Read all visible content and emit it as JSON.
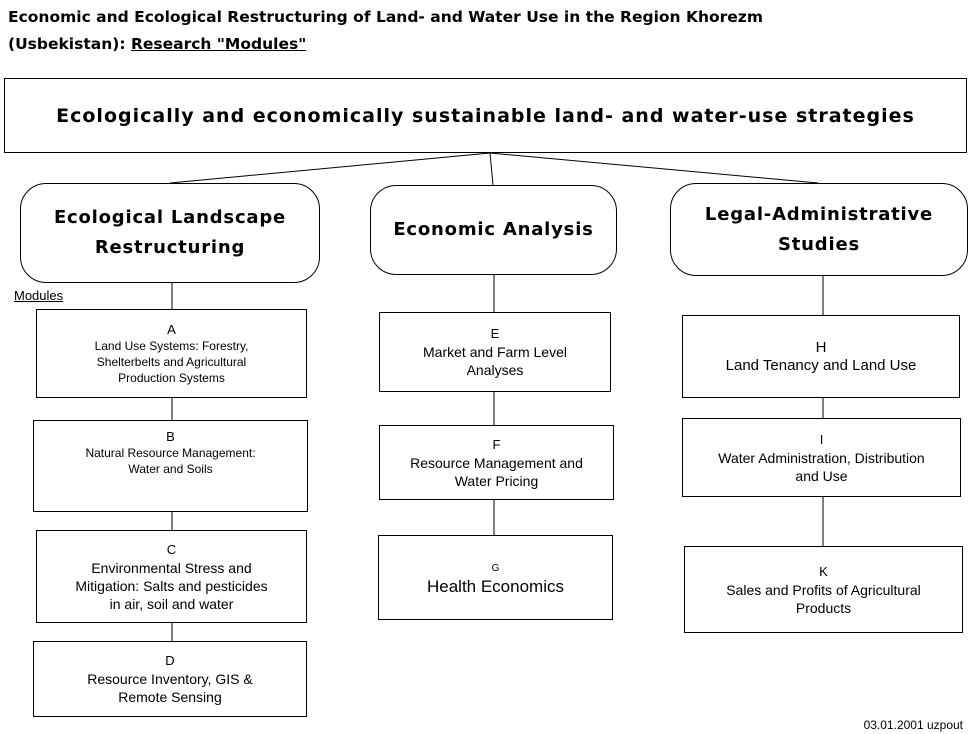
{
  "title": {
    "line1": "Economic and Ecological Restructuring of Land- and Water Use in the Region Khorezm",
    "line2_prefix": "(Usbekistan):",
    "line2_link": "Research \"Modules\""
  },
  "top": "Ecologically and economically sustainable land- and water-use strategies",
  "modules_label": "Modules",
  "columns": [
    {
      "heading": [
        "Ecological Landscape",
        "Restructuring"
      ],
      "modules": [
        {
          "letter": "A",
          "lines": [
            "Land Use Systems: Forestry,",
            "Shelterbelts and Agricultural",
            "Production Systems"
          ]
        },
        {
          "letter": "B",
          "lines": [
            "Natural Resource Management:",
            "Water and Soils"
          ]
        },
        {
          "letter": "C",
          "lines": [
            "Environmental Stress and",
            "Mitigation: Salts and pesticides",
            "in air, soil and water"
          ]
        },
        {
          "letter": "D",
          "lines": [
            "Resource Inventory, GIS &",
            "Remote Sensing"
          ]
        }
      ]
    },
    {
      "heading": [
        "Economic Analysis"
      ],
      "modules": [
        {
          "letter": "E",
          "lines": [
            "Market and Farm Level",
            "Analyses"
          ]
        },
        {
          "letter": "F",
          "lines": [
            "Resource Management and",
            "Water Pricing"
          ]
        },
        {
          "letter": "G",
          "lines": [
            "Health Economics"
          ]
        }
      ]
    },
    {
      "heading": [
        "Legal-Administrative",
        "Studies"
      ],
      "modules": [
        {
          "letter": "H",
          "lines": [
            "Land Tenancy and Land Use"
          ]
        },
        {
          "letter": "I",
          "lines": [
            "Water Administration, Distribution",
            "and Use"
          ]
        },
        {
          "letter": "K",
          "lines": [
            "Sales and Profits of Agricultural",
            "Products"
          ]
        }
      ]
    }
  ],
  "footer": "03.01.2001 uzpout"
}
